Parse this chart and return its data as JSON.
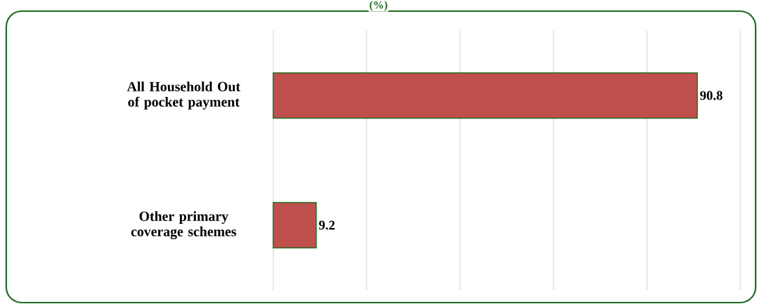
{
  "chart_data": {
    "type": "bar",
    "orientation": "horizontal",
    "title": "(%)",
    "categories": [
      "All Household Out of pocket payment",
      "Other primary coverage schemes"
    ],
    "values": [
      90.8,
      9.2
    ],
    "color": "#c0504d",
    "xlim": [
      0,
      100
    ],
    "grid": "x",
    "tick_labels": "y",
    "data_labels": true
  }
}
